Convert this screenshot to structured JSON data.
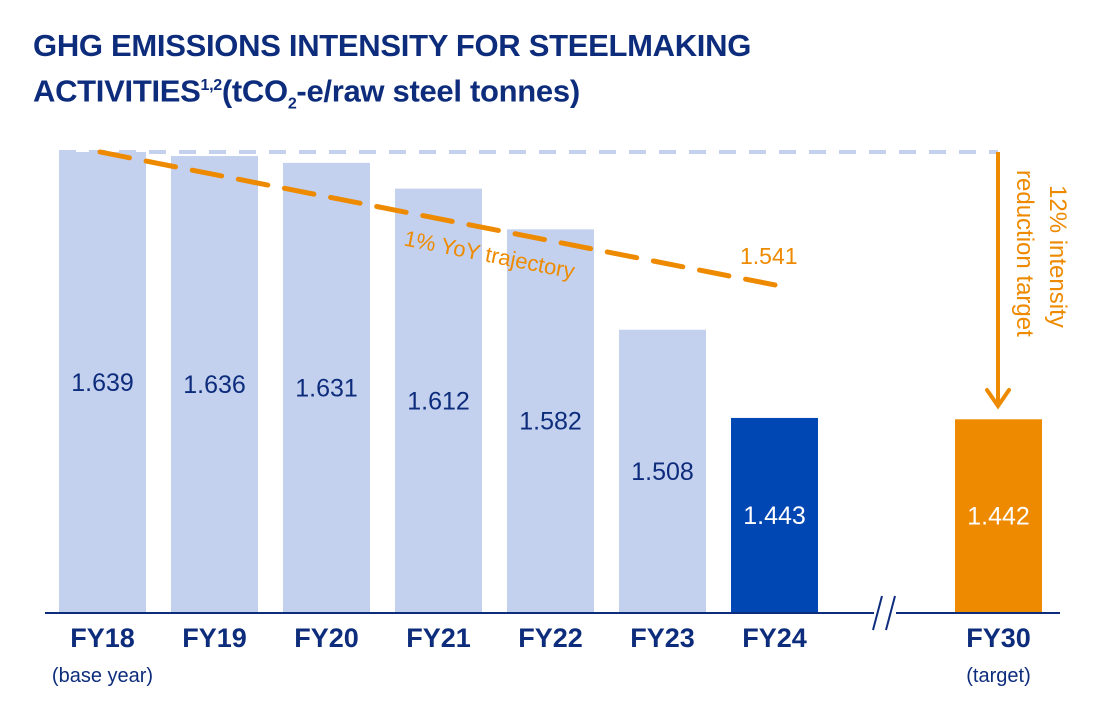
{
  "chart_data": {
    "type": "bar",
    "title_line1": "GHG EMISSIONS INTENSITY FOR STEELMAKING",
    "title_line2_main": "ACTIVITIES",
    "title_sup": "1,2",
    "title_unit_a": "(tCO",
    "title_unit_sub": "2",
    "title_unit_b": "-e/raw steel tonnes)",
    "categories": [
      "FY18",
      "FY19",
      "FY20",
      "FY21",
      "FY22",
      "FY23",
      "FY24",
      "FY30"
    ],
    "category_sublabels": [
      "(base year)",
      "",
      "",
      "",
      "",
      "",
      "",
      "(target)"
    ],
    "values": [
      1.639,
      1.636,
      1.631,
      1.612,
      1.582,
      1.508,
      1.443,
      1.442
    ],
    "value_labels": [
      "1.639",
      "1.636",
      "1.631",
      "1.612",
      "1.582",
      "1.508",
      "1.443",
      "1.442"
    ],
    "bar_colors": [
      "#c3d1ee",
      "#c3d1ee",
      "#c3d1ee",
      "#c3d1ee",
      "#c3d1ee",
      "#c3d1ee",
      "#0047b3",
      "#ee8a00"
    ],
    "ylim": [
      1.3,
      1.66
    ],
    "axis_break_between": [
      "FY24",
      "FY30"
    ],
    "trajectory": {
      "label": "1% YoY trajectory",
      "from": {
        "x": "FY18",
        "y": 1.639
      },
      "to": {
        "x": "FY24",
        "y": 1.541
      },
      "end_label": "1.541",
      "color": "#ee8a00"
    },
    "target_annotation": {
      "line1": "12% intensity",
      "line2": "reduction target",
      "color": "#ee8a00"
    },
    "colors": {
      "title": "#0d2c7c",
      "axis": "#0d2c7c",
      "base": "#c3d1ee"
    }
  }
}
